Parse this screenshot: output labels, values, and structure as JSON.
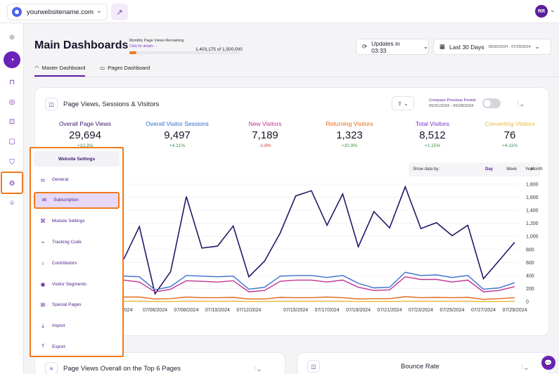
{
  "topbar": {
    "site_name": "yourwebsitename.com",
    "site_chevron": "⌄",
    "external_icon": "↗",
    "avatar_initials": "RR",
    "avatar_chevron": "⌄"
  },
  "sidebar": {
    "items": [
      {
        "name": "compass",
        "glyph": "⊕"
      },
      {
        "name": "dashboard",
        "glyph": "◔"
      },
      {
        "name": "bag",
        "glyph": "⊓"
      },
      {
        "name": "fingerprint",
        "glyph": "◎"
      },
      {
        "name": "scan",
        "glyph": "⊡"
      },
      {
        "name": "chat",
        "glyph": "▢"
      },
      {
        "name": "shield",
        "glyph": "⛉"
      },
      {
        "name": "gear",
        "glyph": "⚙"
      },
      {
        "name": "map-pin",
        "glyph": "⌾"
      }
    ]
  },
  "header": {
    "title": "Main Dashboards",
    "quota_label": "Monthly Page Views Remaining",
    "quota_value": "1,403,175 of 1,500,000",
    "quota_link": "Click for details →",
    "quota_used_fraction": 0.065,
    "updates_label": "Updates in 03:33",
    "updates_chevron": "⌄",
    "date_label": "Last 30 Days",
    "date_range": "06/30/2024 - 07/29/2024",
    "date_chevron": "⌄"
  },
  "tabs": [
    {
      "label": "Master Dashboard",
      "icon": "◠"
    },
    {
      "label": "Pages Dashboard",
      "icon": "▭"
    }
  ],
  "main_card": {
    "title": "Page Views, Sessions & Visitors",
    "compare_label": "Compare Previous Period",
    "compare_dates": "05/31/2024 - 06/28/2024",
    "export_icon": "⇪ ⌄",
    "settings_icon": "⫶ ⌄",
    "metrics": [
      {
        "label": "Overall Page Views",
        "value": "29,694",
        "change": "+10.3%",
        "color": "#3a1a70",
        "change_color": "#3a8a4c"
      },
      {
        "label": "Overall Visitor Sessions",
        "value": "9,497",
        "change": "+4.21%",
        "color": "#2f6fc7",
        "change_color": "#3a8a4c"
      },
      {
        "label": "New Visitors",
        "value": "7,189",
        "change": "-1.8%",
        "color": "#c2338f",
        "change_color": "#d23a3a"
      },
      {
        "label": "Returning Visitors",
        "value": "1,323",
        "change": "+20.9%",
        "color": "#e06a1a",
        "change_color": "#3a8a4c"
      },
      {
        "label": "Total Visitors",
        "value": "8,512",
        "change": "+1.15%",
        "color": "#7a2fc4",
        "change_color": "#3a8a4c"
      },
      {
        "label": "Converting Visitors",
        "value": "76",
        "change": "+4.11%",
        "color": "#e8b93a",
        "change_color": "#3a8a4c"
      }
    ],
    "show_data": {
      "label": "Show data by:",
      "options": [
        "Day",
        "Week",
        "Month",
        "Year"
      ],
      "selected": "Day"
    }
  },
  "chart_data": {
    "type": "line",
    "x": [
      "07/04/2024",
      "07/05/2024",
      "07/06/2024",
      "07/07/2024",
      "07/08/2024",
      "07/09/2024",
      "07/10/2024",
      "07/11/2024",
      "07/12/2024",
      "07/13/2024",
      "07/14/2024",
      "07/15/2024",
      "07/16/2024",
      "07/17/2024",
      "07/18/2024",
      "07/19/2024",
      "07/20/2024",
      "07/21/2024",
      "07/22/2024",
      "07/23/2024",
      "07/24/2024",
      "07/25/2024",
      "07/26/2024",
      "07/27/2024",
      "07/28/2024",
      "07/29/2024"
    ],
    "tick_labels": [
      "04/2024",
      "07/06/2024",
      "07/08/2024",
      "07/10/2024",
      "07/12/2024",
      "07/15/2024",
      "07/17/2024",
      "07/19/2024",
      "07/21/2024",
      "07/23/2024",
      "07/25/2024",
      "07/27/2024",
      "07/29/2024"
    ],
    "tick_positions": [
      "07/04/2024",
      "07/06/2024",
      "07/08/2024",
      "07/10/2024",
      "07/12/2024",
      "07/15/2024",
      "07/17/2024",
      "07/19/2024",
      "07/21/2024",
      "07/23/2024",
      "07/25/2024",
      "07/27/2024",
      "07/29/2024"
    ],
    "y_ticks": [
      "1,800",
      "1,600",
      "1,400",
      "1,200",
      "1,000",
      "800",
      "600",
      "400",
      "200",
      "0"
    ],
    "ylim": [
      0,
      1800
    ],
    "series": [
      {
        "color": "#2b1466",
        "values": [
          650,
          1150,
          120,
          460,
          1610,
          820,
          850,
          1160,
          380,
          620,
          1050,
          1620,
          1700,
          1170,
          1650,
          840,
          1380,
          1130,
          1760,
          1120,
          1210,
          1010,
          1170,
          350,
          630,
          910
        ]
      },
      {
        "color": "#3b6fd1",
        "values": [
          390,
          380,
          180,
          230,
          400,
          390,
          380,
          390,
          190,
          220,
          390,
          400,
          400,
          370,
          400,
          280,
          210,
          220,
          450,
          400,
          410,
          370,
          400,
          190,
          210,
          290
        ]
      },
      {
        "color": "#c2338f",
        "values": [
          330,
          300,
          150,
          190,
          320,
          310,
          300,
          320,
          150,
          170,
          310,
          330,
          330,
          300,
          330,
          220,
          170,
          180,
          380,
          340,
          340,
          300,
          330,
          150,
          170,
          230
        ]
      },
      {
        "color": "#e06a1a",
        "values": [
          70,
          70,
          40,
          45,
          70,
          60,
          60,
          65,
          40,
          40,
          65,
          60,
          60,
          70,
          60,
          40,
          45,
          45,
          75,
          60,
          65,
          60,
          65,
          35,
          45,
          60
        ]
      },
      {
        "color": "#e8b93a",
        "values": [
          5,
          5,
          3,
          3,
          5,
          5,
          4,
          5,
          3,
          3,
          5,
          5,
          5,
          5,
          5,
          3,
          3,
          3,
          6,
          5,
          5,
          4,
          5,
          2,
          3,
          4
        ]
      }
    ]
  },
  "bottom_cards": {
    "left_title": "Page Views Overall on the Top 6 Pages",
    "right_title": "Bounce Rate"
  },
  "settings_menu": {
    "title": "Website Settings",
    "items": [
      {
        "label": "General",
        "icon": "⚌"
      },
      {
        "label": "Subscription",
        "icon": "✉"
      },
      {
        "label": "Module Settings",
        "icon": "⌘"
      },
      {
        "label": "Tracking Code",
        "icon": "⌁"
      },
      {
        "label": "Contributors",
        "icon": "♁"
      },
      {
        "label": "Visitor Segments",
        "icon": "◉"
      },
      {
        "label": "Special Pages",
        "icon": "⊞"
      },
      {
        "label": "Import",
        "icon": "⤓"
      },
      {
        "label": "Export",
        "icon": "⤒"
      }
    ],
    "selected": "Subscription"
  },
  "chat_icon": "💬"
}
